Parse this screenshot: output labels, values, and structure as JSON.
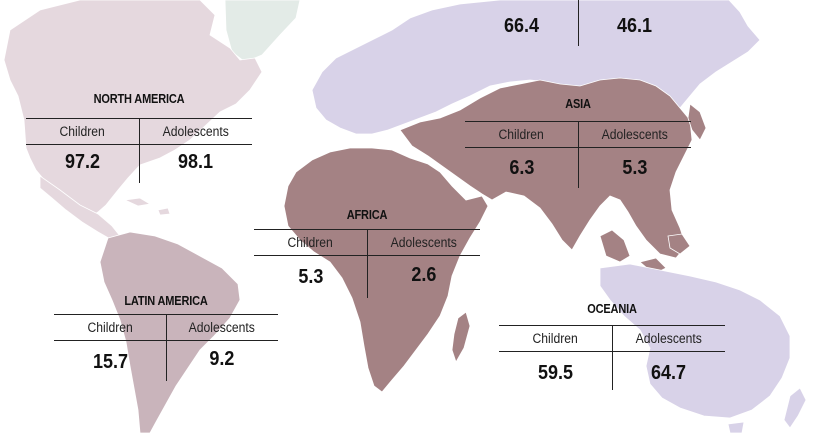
{
  "colors": {
    "background": "#ffffff",
    "north_america": "#e5d8de",
    "latin_america": "#c9b4bb",
    "africa": "#a48284",
    "asia": "#a48284",
    "europe_russia": "#d8d2e8",
    "oceania": "#d8d2e8",
    "greenland": "#e3ebe7",
    "text": "#111111"
  },
  "regions": {
    "europe": {
      "name": "",
      "children_label": "",
      "adolescents_label": "",
      "children_value": "66.4",
      "adolescents_value": "46.1"
    },
    "north_america": {
      "name": "NORTH AMERICA",
      "children_label": "Children",
      "adolescents_label": "Adolescents",
      "children_value": "97.2",
      "adolescents_value": "98.1"
    },
    "asia": {
      "name": "ASIA",
      "children_label": "Children",
      "adolescents_label": "Adolescents",
      "children_value": "6.3",
      "adolescents_value": "5.3"
    },
    "africa": {
      "name": "AFRICA",
      "children_label": "Children",
      "adolescents_label": "Adolescents",
      "children_value": "5.3",
      "adolescents_value": "2.6"
    },
    "latin_america": {
      "name": "LATIN AMERICA",
      "children_label": "Children",
      "adolescents_label": "Adolescents",
      "children_value": "15.7",
      "adolescents_value": "9.2"
    },
    "oceania": {
      "name": "OCEANIA",
      "children_label": "Children",
      "adolescents_label": "Adolescents",
      "children_value": "59.5",
      "adolescents_value": "64.7"
    }
  }
}
